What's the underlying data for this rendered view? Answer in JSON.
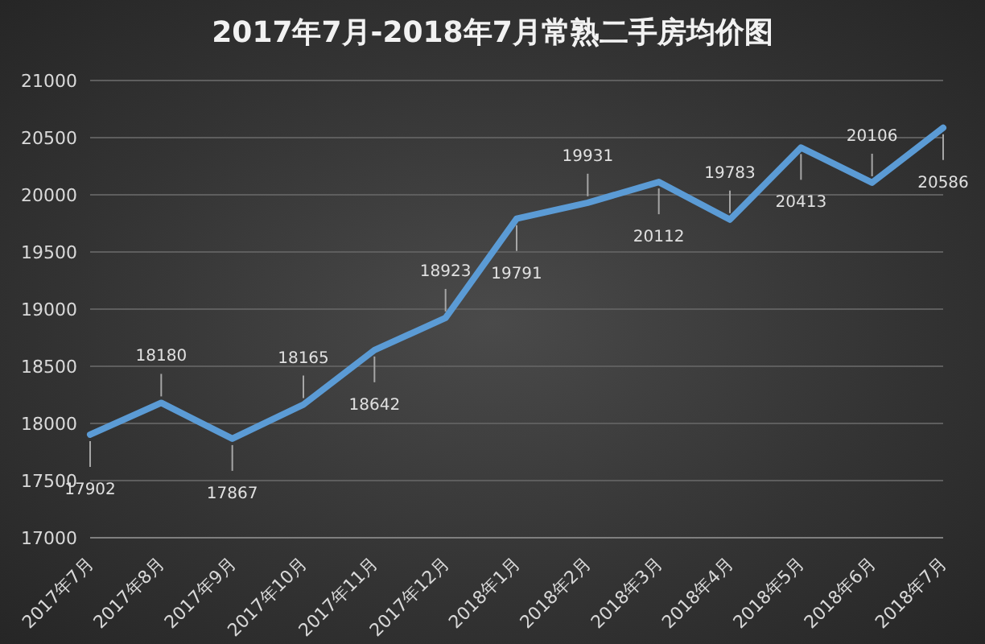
{
  "chart_data": {
    "type": "line",
    "title": "2017年7月-2018年7月常熟二手房均价图",
    "categories": [
      "2017年7月",
      "2017年8月",
      "2017年9月",
      "2017年10月",
      "2017年11月",
      "2017年12月",
      "2018年1月",
      "2018年2月",
      "2018年3月",
      "2018年4月",
      "2018年5月",
      "2018年6月",
      "2018年7月"
    ],
    "series": [
      {
        "color": "#5b9bd5",
        "values": [
          17902,
          18180,
          17867,
          18165,
          18642,
          18923,
          19791,
          19931,
          20112,
          19783,
          20413,
          20106,
          20586
        ]
      }
    ],
    "ylim": [
      17000,
      21000
    ],
    "yticks": [
      17000,
      17500,
      18000,
      18500,
      19000,
      19500,
      20000,
      20500,
      21000
    ],
    "grid": "y",
    "data_labels": true,
    "marker": "none",
    "line_style": "solid",
    "legend": false
  }
}
